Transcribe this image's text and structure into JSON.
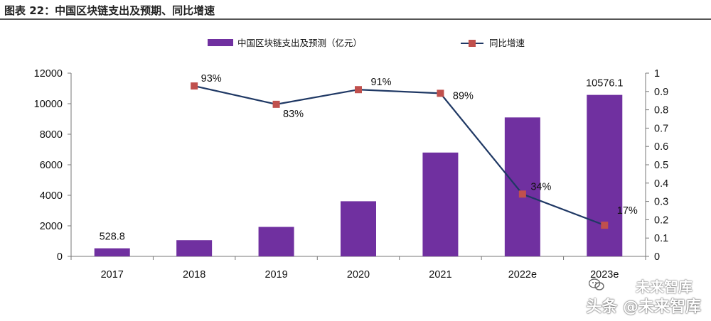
{
  "figure_title": "图表 22：中国区块链支出及预期、同比增速",
  "watermark": {
    "line1": "未来智库",
    "line2": "头条 @未来智库"
  },
  "colors": {
    "bar": "#7030A0",
    "line": "#1F3864",
    "marker": "#C0504D",
    "axis": "#777777"
  },
  "chart_data": {
    "type": "bar",
    "categories": [
      "2017",
      "2018",
      "2019",
      "2020",
      "2021",
      "2022e",
      "2023e"
    ],
    "series": [
      {
        "name": "中国区块链支出及预测（亿元）",
        "type": "bar",
        "axis": "left",
        "values": [
          528.8,
          1060,
          1930,
          3610,
          6800,
          9100,
          10576.1
        ],
        "labels": [
          "528.8",
          "",
          "",
          "",
          "",
          "",
          "10576.1"
        ]
      },
      {
        "name": "同比增速",
        "type": "line",
        "axis": "right",
        "values": [
          null,
          0.93,
          0.83,
          0.91,
          0.89,
          0.34,
          0.17
        ],
        "labels": [
          "",
          "93%",
          "83%",
          "91%",
          "89%",
          "34%",
          "17%"
        ]
      }
    ],
    "y_left": {
      "min": 0,
      "max": 12000,
      "ticks": [
        "0",
        "2000",
        "4000",
        "6000",
        "8000",
        "10000",
        "12000"
      ]
    },
    "y_right": {
      "min": 0,
      "max": 1,
      "ticks": [
        "0",
        "0.1",
        "0.2",
        "0.3",
        "0.4",
        "0.5",
        "0.6",
        "0.7",
        "0.8",
        "0.9",
        "1"
      ]
    },
    "legend_position": "top",
    "grid": false
  }
}
